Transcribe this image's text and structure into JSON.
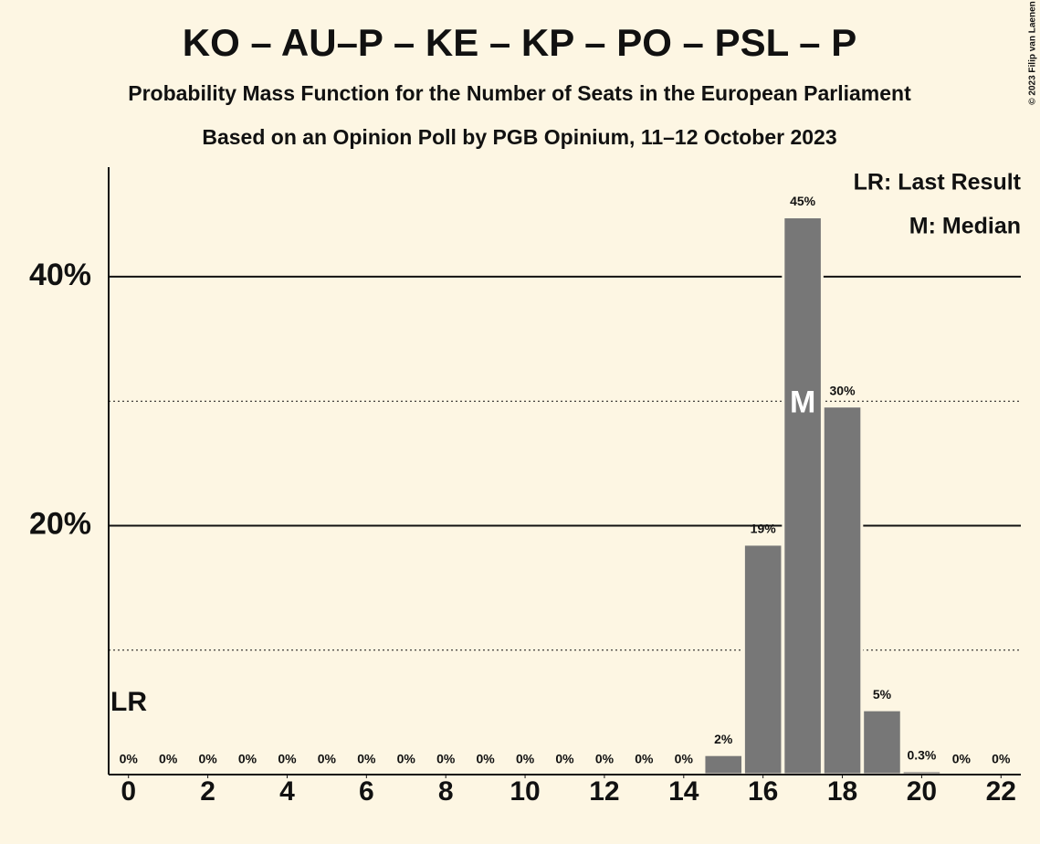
{
  "chart_data": {
    "type": "bar",
    "title": "KO – AU–P – KE – KP – PO – PSL – P",
    "subtitle": "Probability Mass Function for the Number of Seats in the European Parliament",
    "caption": "Based on an Opinion Poll by PGB Opinium, 11–12 October 2023",
    "credit": "© 2023 Filip van Laenen",
    "x": [
      0,
      1,
      2,
      3,
      4,
      5,
      6,
      7,
      8,
      9,
      10,
      11,
      12,
      13,
      14,
      15,
      16,
      17,
      18,
      19,
      20,
      21,
      22
    ],
    "values": [
      0,
      0,
      0,
      0,
      0,
      0,
      0,
      0,
      0,
      0,
      0,
      0,
      0,
      0,
      0,
      1.6,
      18.5,
      44.8,
      29.6,
      5.2,
      0.3,
      0,
      0
    ],
    "value_labels": [
      "0%",
      "0%",
      "0%",
      "0%",
      "0%",
      "0%",
      "0%",
      "0%",
      "0%",
      "0%",
      "0%",
      "0%",
      "0%",
      "0%",
      "0%",
      "2%",
      "19%",
      "45%",
      "30%",
      "5%",
      "0.3%",
      "0%",
      "0%"
    ],
    "color": "#777777",
    "xlim": [
      -0.5,
      22.5
    ],
    "xticks": [
      0,
      2,
      4,
      6,
      8,
      10,
      12,
      14,
      16,
      18,
      20,
      22
    ],
    "ylim": [
      0,
      48.8
    ],
    "yticks": [
      {
        "value": 20,
        "label": "20%"
      },
      {
        "value": 40,
        "label": "40%"
      }
    ],
    "minor_grid": [
      10,
      30
    ],
    "grid": true,
    "annotations": [
      {
        "label": "LR",
        "x": 0
      },
      {
        "label": "M",
        "x": 17
      }
    ],
    "legend": [
      "LR: Last Result",
      "M: Median"
    ],
    "legend_position": "top-right"
  }
}
